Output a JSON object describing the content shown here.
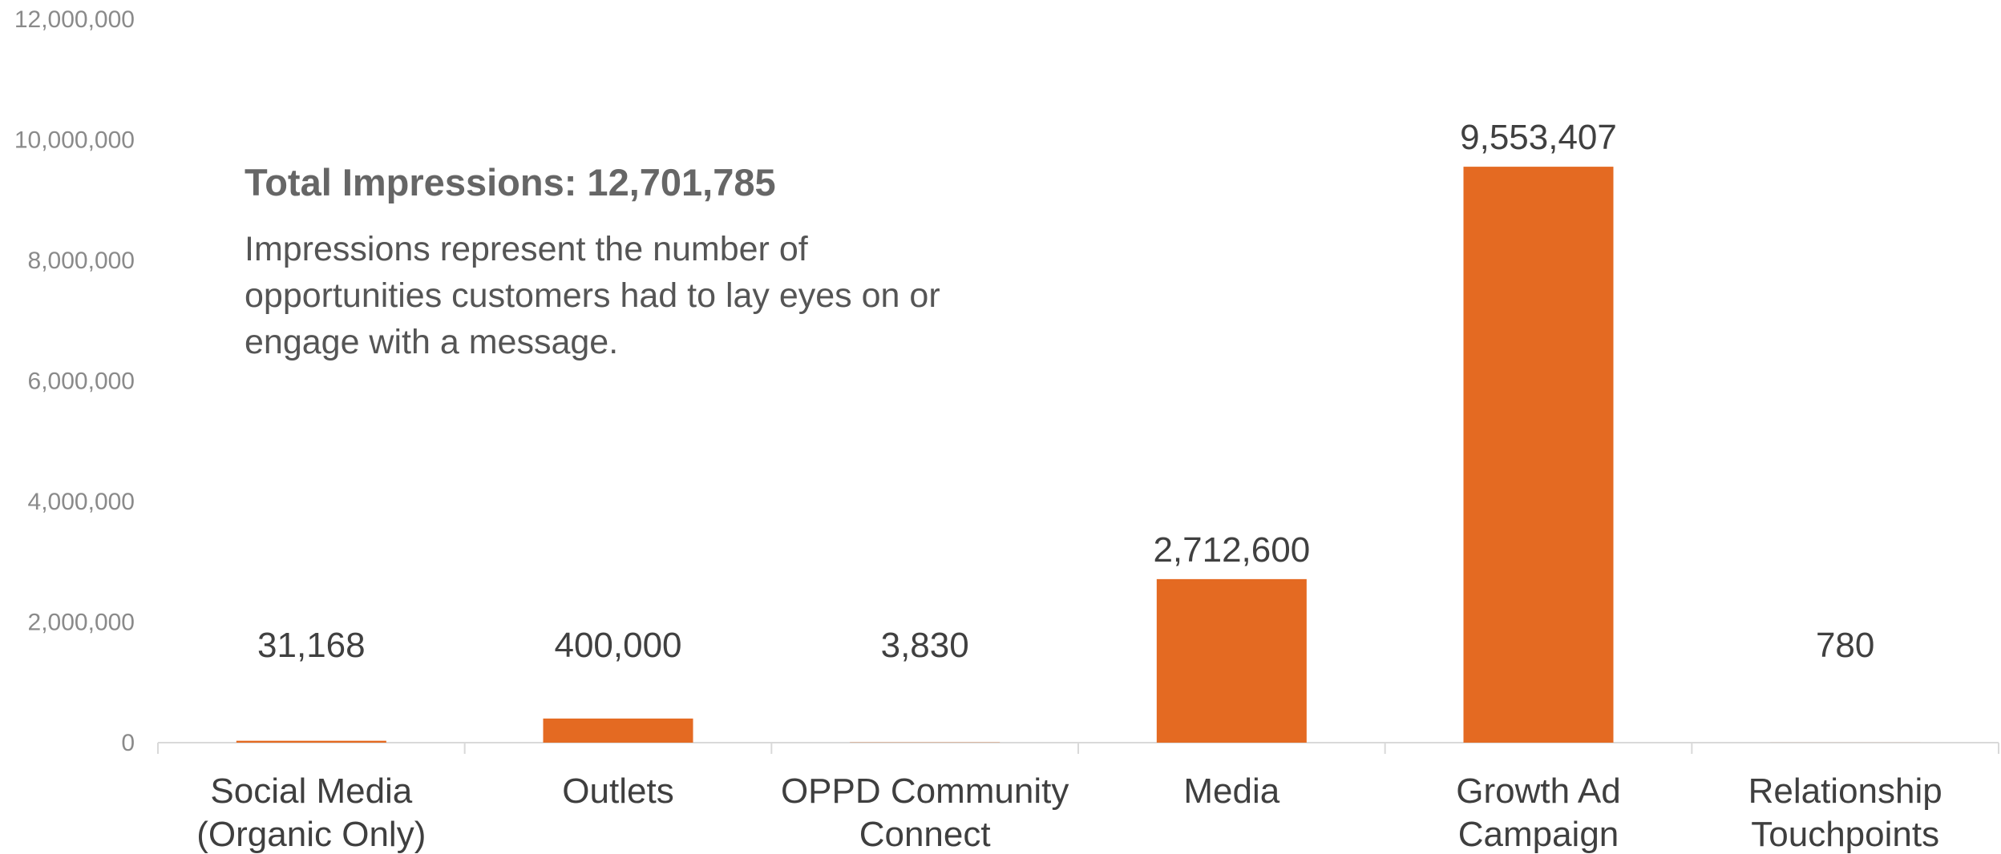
{
  "chart_data": {
    "type": "bar",
    "categories": [
      [
        "Social Media",
        "(Organic Only)"
      ],
      [
        "Outlets"
      ],
      [
        "OPPD Community",
        "Connect"
      ],
      [
        "Media"
      ],
      [
        "Growth Ad",
        "Campaign"
      ],
      [
        "Relationship",
        "Touchpoints"
      ]
    ],
    "values": [
      31168,
      400000,
      3830,
      2712600,
      9553407,
      780
    ],
    "data_labels": [
      "31,168",
      "400,000",
      "3,830",
      "2,712,600",
      "9,553,407",
      "780"
    ],
    "ylim": [
      0,
      12000000
    ],
    "yticks": [
      0,
      2000000,
      4000000,
      6000000,
      8000000,
      10000000,
      12000000
    ],
    "ytick_labels": [
      "0",
      "2,000,000",
      "4,000,000",
      "6,000,000",
      "8,000,000",
      "10,000,000",
      "12,000,000"
    ],
    "bar_color": "#E46A22",
    "grid": false,
    "legend": "none"
  },
  "annotation": {
    "title": "Total Impressions: 12,701,785",
    "body": "Impressions represent the number of opportunities customers had to lay eyes on or engage with a message."
  }
}
